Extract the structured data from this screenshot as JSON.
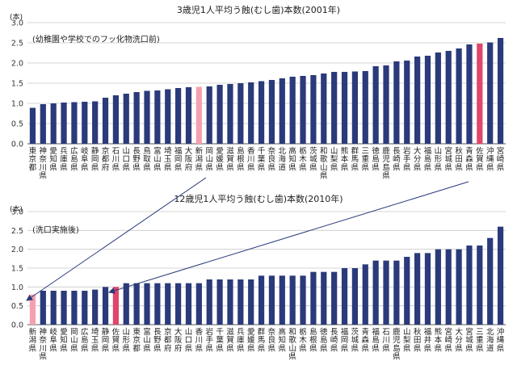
{
  "chart_data": [
    {
      "type": "bar",
      "title": "3歳児1人平均う蝕(むし歯)本数(2001年)",
      "unit": "(本)",
      "note": "(幼稚園や学校でのフッ化物洗口前)",
      "ylim": [
        0,
        3.0
      ],
      "yticks": [
        "0.0",
        "0.5",
        "1.0",
        "1.5",
        "2.0",
        "2.5",
        "3.0"
      ],
      "grid": true,
      "color": "#2a3a7a",
      "highlight": {
        "新潟県": "#f4a0b0",
        "佐賀県": "#e0456a"
      },
      "categories": [
        "東京都",
        "神奈川県",
        "愛知県",
        "兵庫県",
        "広島県",
        "岐阜県",
        "静岡県",
        "京都府",
        "石川県",
        "山口県",
        "長野県",
        "鳥取県",
        "富山県",
        "埼玉県",
        "福岡県",
        "大阪府",
        "新潟県",
        "岡山県",
        "愛媛県",
        "滋賀県",
        "島根県",
        "香川県",
        "千葉県",
        "奈良県",
        "北海道",
        "高知県",
        "栃木県",
        "茨城県",
        "和歌山県",
        "山梨県",
        "熊本県",
        "群馬県",
        "三重県",
        "徳島県",
        "鹿児島県",
        "長崎県",
        "岩手県",
        "大分県",
        "福島県",
        "山形県",
        "宮城県",
        "秋田県",
        "青森県",
        "佐賀県",
        "沖縄県",
        "宮崎県"
      ],
      "values": [
        0.89,
        0.98,
        1.0,
        1.02,
        1.03,
        1.04,
        1.05,
        1.14,
        1.2,
        1.24,
        1.28,
        1.31,
        1.32,
        1.35,
        1.38,
        1.4,
        1.41,
        1.42,
        1.46,
        1.48,
        1.5,
        1.52,
        1.55,
        1.58,
        1.62,
        1.66,
        1.68,
        1.7,
        1.74,
        1.78,
        1.78,
        1.79,
        1.8,
        1.92,
        1.94,
        2.04,
        2.06,
        2.16,
        2.18,
        2.26,
        2.3,
        2.36,
        2.46,
        2.48,
        2.51,
        2.62
      ]
    },
    {
      "type": "bar",
      "title": "12歳児1人平均う蝕(むし歯)本数(2010年)",
      "unit": "(本)",
      "note": "(洗口実施後)",
      "ylim": [
        0,
        3.0
      ],
      "yticks": [
        "0.0",
        "0.5",
        "1.0",
        "1.5",
        "2.0",
        "2.5",
        "3.0"
      ],
      "grid": true,
      "color": "#2a3a7a",
      "highlight": {
        "新潟県": "#f4a0b0",
        "佐賀県": "#e0456a"
      },
      "categories": [
        "新潟県",
        "神奈川県",
        "岐阜県",
        "愛知県",
        "岡山県",
        "広島県",
        "埼玉県",
        "静岡県",
        "佐賀県",
        "山形県",
        "東京都",
        "富山県",
        "長野県",
        "京都府",
        "大阪府",
        "山口県",
        "香川県",
        "岩手県",
        "千葉県",
        "滋賀県",
        "兵庫県",
        "愛媛県",
        "群馬県",
        "奈良県",
        "高知県",
        "和歌山県",
        "栃木県",
        "島根県",
        "徳島県",
        "長崎県",
        "福岡県",
        "茨城県",
        "青森県",
        "福島県",
        "石川県",
        "鹿児島県",
        "山梨県",
        "秋田県",
        "福井県",
        "熊本県",
        "宮崎県",
        "大分県",
        "宮城県",
        "三重県",
        "北海道",
        "沖縄県"
      ],
      "values": [
        0.8,
        0.9,
        0.9,
        0.9,
        0.9,
        0.9,
        0.93,
        1.0,
        1.0,
        1.1,
        1.1,
        1.1,
        1.1,
        1.1,
        1.1,
        1.1,
        1.1,
        1.2,
        1.2,
        1.2,
        1.2,
        1.2,
        1.3,
        1.3,
        1.3,
        1.3,
        1.3,
        1.4,
        1.4,
        1.4,
        1.5,
        1.5,
        1.6,
        1.7,
        1.7,
        1.7,
        1.8,
        1.9,
        1.9,
        2.0,
        2.0,
        2.0,
        2.1,
        2.1,
        2.3,
        2.6
      ]
    }
  ]
}
